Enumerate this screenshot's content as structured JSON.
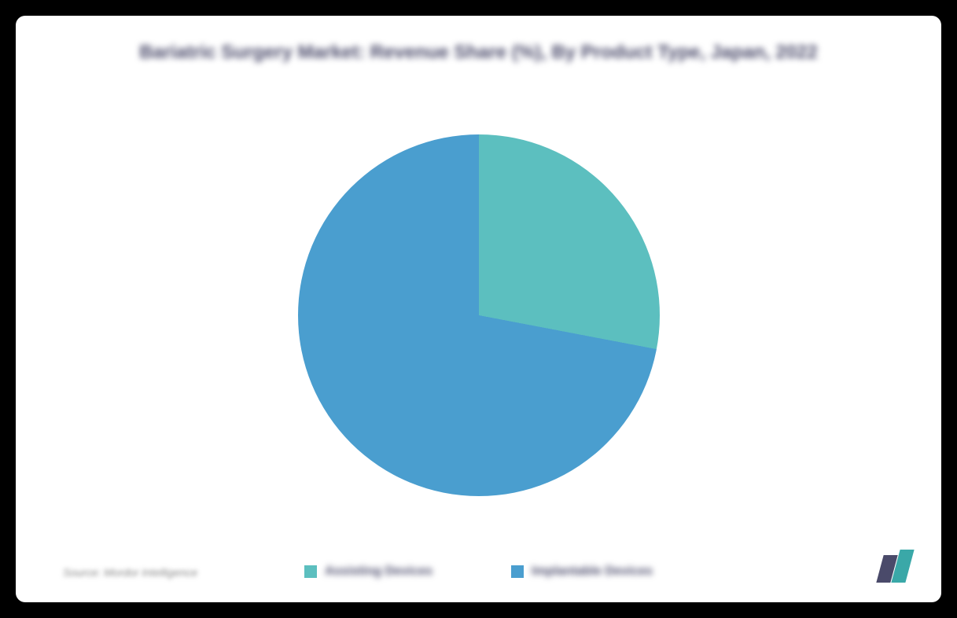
{
  "chart": {
    "type": "pie",
    "title": "Bariatric Surgery Market: Revenue Share (%), By Product Type, Japan, 2022",
    "title_fontsize": 24,
    "title_color": "#4a4a6a",
    "background_color": "#ffffff",
    "container_background": "#000000",
    "pie_diameter": 460,
    "slices": [
      {
        "label": "Assisting Devices",
        "value": 28,
        "color": "#5cbfbf"
      },
      {
        "label": "Implantable Devices",
        "value": 72,
        "color": "#4a9ecf"
      }
    ],
    "legend": {
      "items": [
        {
          "label": "Assisting Devices",
          "color": "#5cbfbf"
        },
        {
          "label": "Implantable Devices",
          "color": "#4a9ecf"
        }
      ],
      "label_fontsize": 16,
      "label_color": "#4a4a6a",
      "swatch_size": 16
    },
    "source": {
      "text": "Source: Mordor Intelligence",
      "fontsize": 14,
      "color": "#888888"
    },
    "logo": {
      "bar1_color": "#4a4a6a",
      "bar2_color": "#3aa8a8"
    }
  }
}
